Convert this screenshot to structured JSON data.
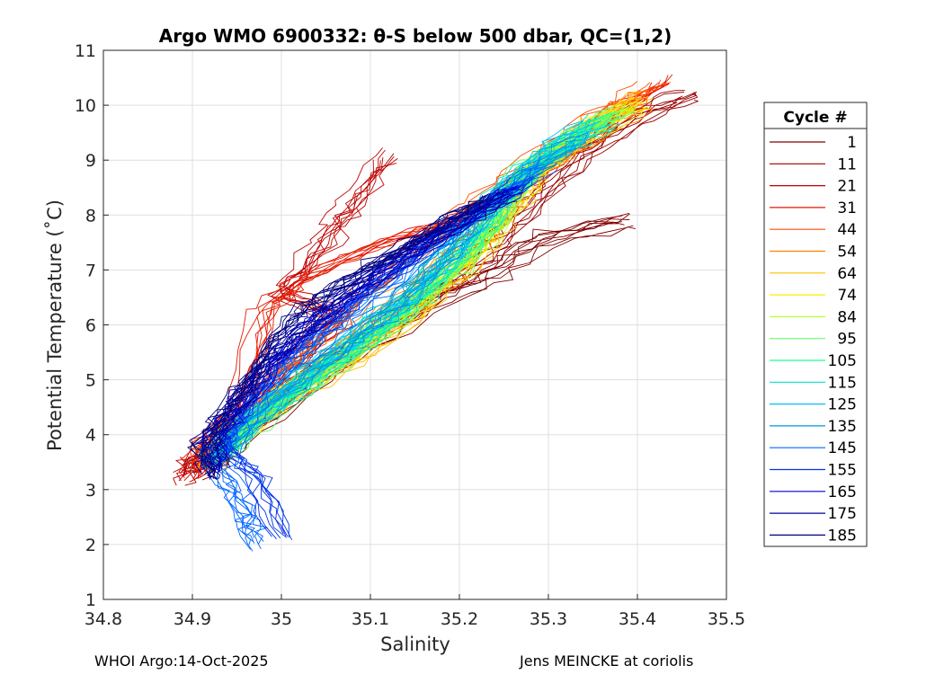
{
  "chart_data": {
    "type": "line",
    "title": "Argo WMO 6900332: θ-S below 500 dbar,  QC=(1,2)",
    "xlabel": "Salinity",
    "ylabel": "Potential Temperature (˚C)",
    "xlim": [
      34.8,
      35.5
    ],
    "ylim": [
      1,
      11
    ],
    "xticks": [
      "34.8",
      "34.9",
      "35",
      "35.1",
      "35.2",
      "35.3",
      "35.4",
      "35.5"
    ],
    "yticks": [
      "1",
      "2",
      "3",
      "4",
      "5",
      "6",
      "7",
      "8",
      "9",
      "10",
      "11"
    ],
    "grid": true,
    "legend": {
      "title": "Cycle #",
      "position": "right, outside",
      "entries": [
        {
          "label": "1",
          "color": "#800000"
        },
        {
          "label": "11",
          "color": "#990000"
        },
        {
          "label": "21",
          "color": "#bf0000"
        },
        {
          "label": "31",
          "color": "#e61a00"
        },
        {
          "label": "44",
          "color": "#ff4d00"
        },
        {
          "label": "54",
          "color": "#ff8000"
        },
        {
          "label": "64",
          "color": "#ffbf00"
        },
        {
          "label": "74",
          "color": "#ffee00"
        },
        {
          "label": "84",
          "color": "#b3ff33"
        },
        {
          "label": "95",
          "color": "#66ff66"
        },
        {
          "label": "105",
          "color": "#1aff99"
        },
        {
          "label": "115",
          "color": "#00e6cc"
        },
        {
          "label": "125",
          "color": "#00bfff"
        },
        {
          "label": "135",
          "color": "#0099d9"
        },
        {
          "label": "145",
          "color": "#0066ff"
        },
        {
          "label": "155",
          "color": "#0033e6"
        },
        {
          "label": "165",
          "color": "#0000cc"
        },
        {
          "label": "175",
          "color": "#00009f"
        },
        {
          "label": "185",
          "color": "#000080"
        }
      ]
    },
    "series": [
      {
        "name": "1",
        "color": "#800000",
        "points": [
          [
            35.39,
            7.9
          ],
          [
            35.3,
            7.6
          ],
          [
            35.24,
            7.0
          ],
          [
            35.18,
            6.5
          ],
          [
            35.1,
            5.7
          ],
          [
            35.0,
            4.6
          ],
          [
            34.93,
            3.6
          ],
          [
            34.9,
            3.3
          ]
        ]
      },
      {
        "name": "11",
        "color": "#990000",
        "points": [
          [
            35.46,
            10.2
          ],
          [
            35.4,
            9.8
          ],
          [
            35.33,
            9.0
          ],
          [
            35.28,
            8.2
          ],
          [
            35.24,
            7.5
          ],
          [
            35.19,
            6.8
          ],
          [
            35.12,
            6.0
          ],
          [
            35.03,
            5.0
          ],
          [
            34.95,
            4.0
          ],
          [
            34.9,
            3.4
          ]
        ]
      },
      {
        "name": "21",
        "color": "#bf0000",
        "points": [
          [
            35.12,
            9.1
          ],
          [
            35.08,
            8.2
          ],
          [
            35.05,
            7.5
          ],
          [
            35.0,
            6.6
          ],
          [
            35.07,
            6.2
          ],
          [
            35.02,
            5.4
          ],
          [
            34.96,
            4.4
          ],
          [
            34.91,
            3.7
          ],
          [
            34.89,
            3.2
          ]
        ]
      },
      {
        "name": "31",
        "color": "#e61a00",
        "points": [
          [
            35.43,
            10.5
          ],
          [
            35.35,
            9.6
          ],
          [
            35.28,
            8.7
          ],
          [
            35.2,
            8.0
          ],
          [
            35.12,
            7.6
          ],
          [
            35.02,
            6.9
          ],
          [
            34.98,
            6.3
          ],
          [
            34.95,
            4.5
          ],
          [
            34.91,
            3.8
          ],
          [
            34.9,
            3.3
          ]
        ]
      },
      {
        "name": "44",
        "color": "#ff4d00",
        "points": [
          [
            35.42,
            10.3
          ],
          [
            35.36,
            9.8
          ],
          [
            35.3,
            9.1
          ],
          [
            35.24,
            8.4
          ],
          [
            35.19,
            7.8
          ],
          [
            35.13,
            7.0
          ],
          [
            35.06,
            6.0
          ],
          [
            34.99,
            5.0
          ],
          [
            34.94,
            4.1
          ],
          [
            34.91,
            3.5
          ]
        ]
      },
      {
        "name": "54",
        "color": "#ff8000",
        "points": [
          [
            35.41,
            10.1
          ],
          [
            35.35,
            9.5
          ],
          [
            35.29,
            8.9
          ],
          [
            35.24,
            8.1
          ],
          [
            35.2,
            7.4
          ],
          [
            35.14,
            6.6
          ],
          [
            35.07,
            5.7
          ],
          [
            35.0,
            4.8
          ],
          [
            34.94,
            3.9
          ],
          [
            34.92,
            3.4
          ]
        ]
      },
      {
        "name": "64",
        "color": "#ffbf00",
        "points": [
          [
            35.41,
            10.2
          ],
          [
            35.35,
            9.6
          ],
          [
            35.3,
            8.8
          ],
          [
            35.26,
            8.0
          ],
          [
            35.23,
            7.3
          ],
          [
            35.18,
            6.5
          ],
          [
            35.1,
            5.5
          ],
          [
            35.01,
            4.6
          ],
          [
            34.94,
            3.8
          ],
          [
            34.92,
            3.5
          ]
        ]
      },
      {
        "name": "74",
        "color": "#ffee00",
        "points": [
          [
            35.4,
            10.0
          ],
          [
            35.34,
            9.5
          ],
          [
            35.29,
            8.9
          ],
          [
            35.25,
            8.2
          ],
          [
            35.22,
            7.5
          ],
          [
            35.17,
            6.7
          ],
          [
            35.09,
            5.7
          ],
          [
            35.0,
            4.7
          ],
          [
            34.93,
            3.8
          ]
        ]
      },
      {
        "name": "84",
        "color": "#b3ff33",
        "points": [
          [
            35.39,
            10.0
          ],
          [
            35.33,
            9.4
          ],
          [
            35.28,
            8.8
          ],
          [
            35.25,
            8.0
          ],
          [
            35.21,
            7.2
          ],
          [
            35.15,
            6.4
          ],
          [
            35.07,
            5.4
          ],
          [
            34.99,
            4.5
          ],
          [
            34.93,
            3.7
          ]
        ]
      },
      {
        "name": "95",
        "color": "#66ff66",
        "points": [
          [
            35.38,
            9.9
          ],
          [
            35.32,
            9.3
          ],
          [
            35.27,
            8.7
          ],
          [
            35.24,
            7.9
          ],
          [
            35.2,
            7.1
          ],
          [
            35.14,
            6.2
          ],
          [
            35.06,
            5.3
          ],
          [
            34.98,
            4.4
          ],
          [
            34.93,
            3.6
          ]
        ]
      },
      {
        "name": "105",
        "color": "#1aff99",
        "points": [
          [
            35.37,
            9.8
          ],
          [
            35.31,
            9.2
          ],
          [
            35.26,
            8.5
          ],
          [
            35.23,
            7.7
          ],
          [
            35.18,
            6.9
          ],
          [
            35.12,
            6.0
          ],
          [
            35.05,
            5.2
          ],
          [
            34.98,
            4.4
          ],
          [
            34.93,
            3.6
          ]
        ]
      },
      {
        "name": "115",
        "color": "#00e6cc",
        "points": [
          [
            35.36,
            9.7
          ],
          [
            35.3,
            9.1
          ],
          [
            35.25,
            8.4
          ],
          [
            35.21,
            7.6
          ],
          [
            35.16,
            6.7
          ],
          [
            35.1,
            5.9
          ],
          [
            35.04,
            5.1
          ],
          [
            34.97,
            4.3
          ],
          [
            34.93,
            3.6
          ]
        ]
      },
      {
        "name": "125",
        "color": "#00bfff",
        "points": [
          [
            35.35,
            9.6
          ],
          [
            35.29,
            9.0
          ],
          [
            35.24,
            8.2
          ],
          [
            35.2,
            7.4
          ],
          [
            35.15,
            6.6
          ],
          [
            35.09,
            5.8
          ],
          [
            35.02,
            5.0
          ],
          [
            34.96,
            4.2
          ],
          [
            34.92,
            3.5
          ]
        ]
      },
      {
        "name": "135",
        "color": "#0099d9",
        "points": [
          [
            35.34,
            9.4
          ],
          [
            35.28,
            8.8
          ],
          [
            35.23,
            8.0
          ],
          [
            35.19,
            7.3
          ],
          [
            35.14,
            6.5
          ],
          [
            35.08,
            5.7
          ],
          [
            35.02,
            4.9
          ],
          [
            34.96,
            4.1
          ],
          [
            34.92,
            3.5
          ]
        ]
      },
      {
        "name": "145",
        "color": "#0066ff",
        "points": [
          [
            35.3,
            8.9
          ],
          [
            35.24,
            8.3
          ],
          [
            35.18,
            7.6
          ],
          [
            35.12,
            6.8
          ],
          [
            35.07,
            6.1
          ],
          [
            35.01,
            5.3
          ],
          [
            34.96,
            4.4
          ],
          [
            34.93,
            3.4
          ],
          [
            34.96,
            2.6
          ],
          [
            34.97,
            2.0
          ]
        ]
      },
      {
        "name": "155",
        "color": "#0033e6",
        "points": [
          [
            35.27,
            8.6
          ],
          [
            35.21,
            8.0
          ],
          [
            35.15,
            7.3
          ],
          [
            35.09,
            6.6
          ],
          [
            35.04,
            5.9
          ],
          [
            34.99,
            5.2
          ],
          [
            34.95,
            4.4
          ],
          [
            34.93,
            3.8
          ],
          [
            34.97,
            3.2
          ],
          [
            35.0,
            2.1
          ]
        ]
      },
      {
        "name": "165",
        "color": "#0000cc",
        "points": [
          [
            35.26,
            8.5
          ],
          [
            35.2,
            7.9
          ],
          [
            35.14,
            7.3
          ],
          [
            35.08,
            6.6
          ],
          [
            35.03,
            6.0
          ],
          [
            34.99,
            5.4
          ],
          [
            34.95,
            4.6
          ],
          [
            34.92,
            3.9
          ],
          [
            34.92,
            3.4
          ]
        ]
      },
      {
        "name": "175",
        "color": "#00009f",
        "points": [
          [
            35.25,
            8.4
          ],
          [
            35.19,
            7.8
          ],
          [
            35.12,
            7.2
          ],
          [
            35.06,
            6.5
          ],
          [
            35.02,
            5.9
          ],
          [
            34.98,
            5.3
          ],
          [
            34.95,
            4.6
          ],
          [
            34.92,
            3.9
          ],
          [
            34.92,
            3.3
          ]
        ]
      },
      {
        "name": "185",
        "color": "#000080",
        "points": [
          [
            35.23,
            8.3
          ],
          [
            35.17,
            7.8
          ],
          [
            35.1,
            7.1
          ],
          [
            35.05,
            6.6
          ],
          [
            35.01,
            6.1
          ],
          [
            34.97,
            5.2
          ],
          [
            34.94,
            4.5
          ],
          [
            34.91,
            3.9
          ],
          [
            34.93,
            3.3
          ]
        ]
      }
    ]
  },
  "footer": {
    "left": "WHOI Argo:14-Oct-2025",
    "right": "Jens MEINCKE at coriolis"
  }
}
